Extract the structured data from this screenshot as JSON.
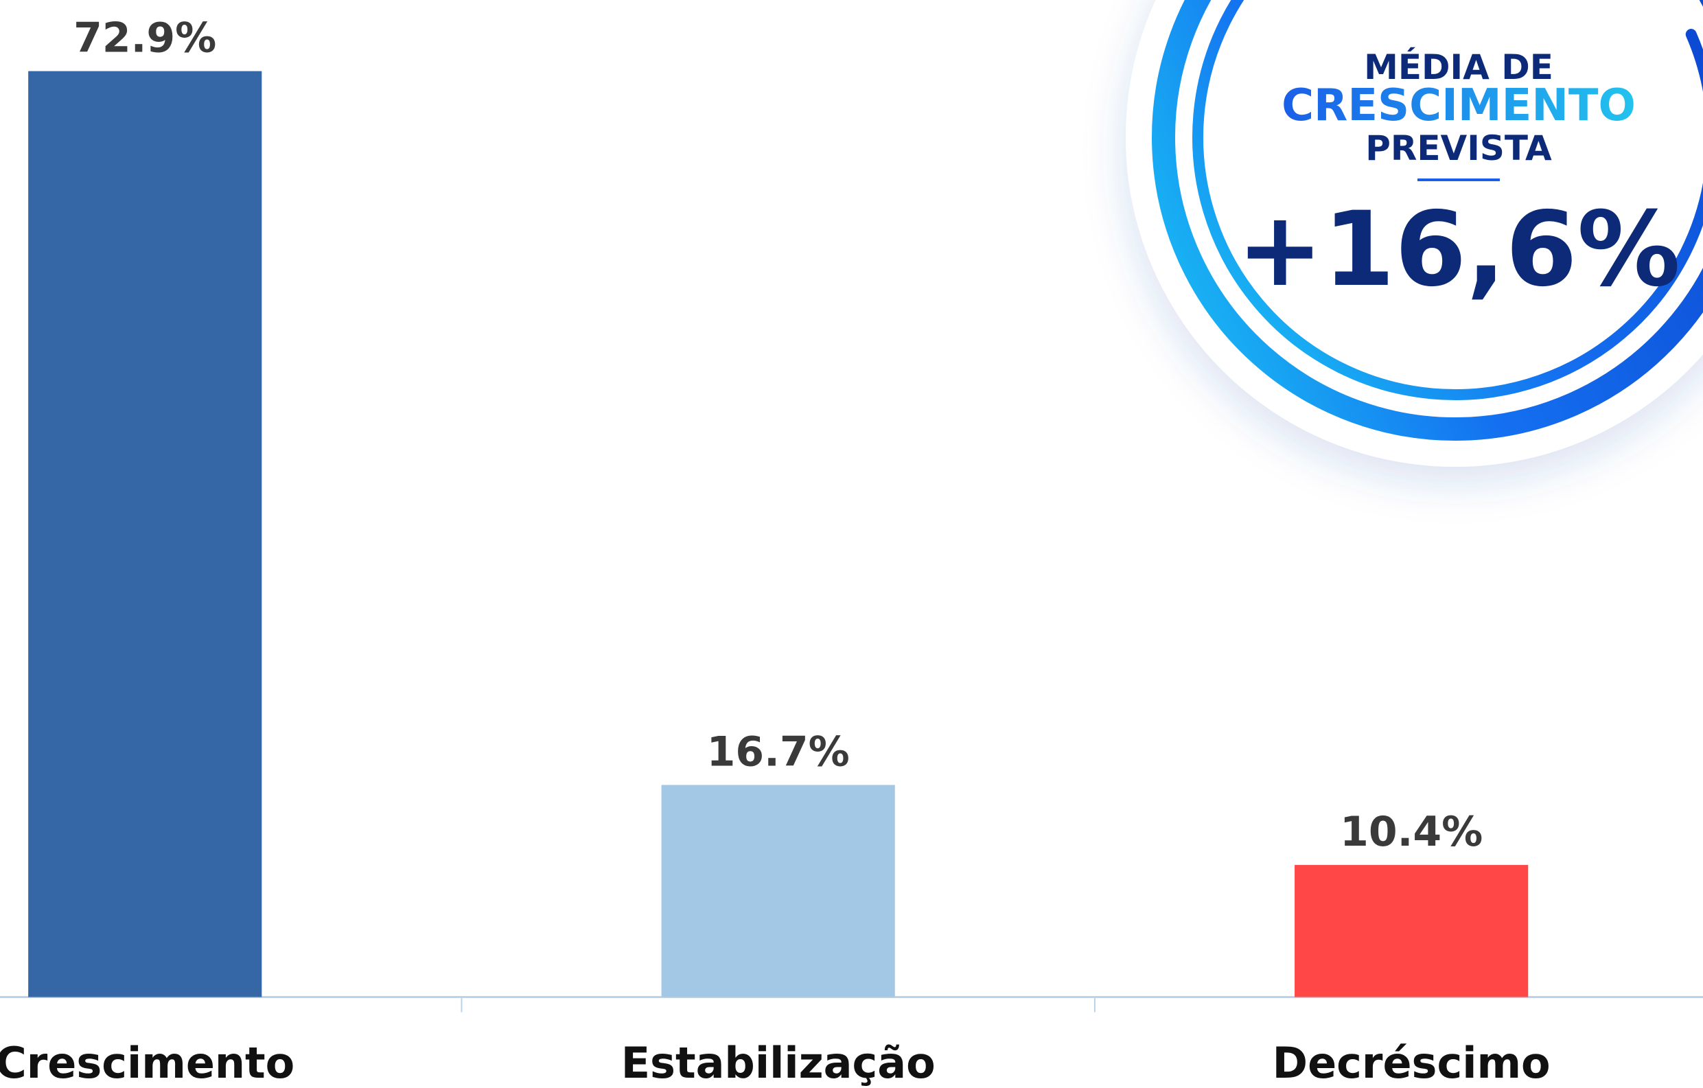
{
  "chart_data": {
    "type": "bar",
    "categories": [
      "Crescimento",
      "Estabilização",
      "Decréscimo"
    ],
    "values": [
      72.9,
      16.7,
      10.4
    ],
    "value_labels": [
      "72.9%",
      "16.7%",
      "10.4%"
    ],
    "colors": [
      "#3567a6",
      "#a3c8e6",
      "#ff4747"
    ],
    "ylim": [
      0,
      78.5
    ]
  },
  "badge": {
    "line1": "MÉDIA DE",
    "line2": "CRESCIMENTO",
    "line3": "PREVISTA",
    "value": "+16,6%"
  }
}
